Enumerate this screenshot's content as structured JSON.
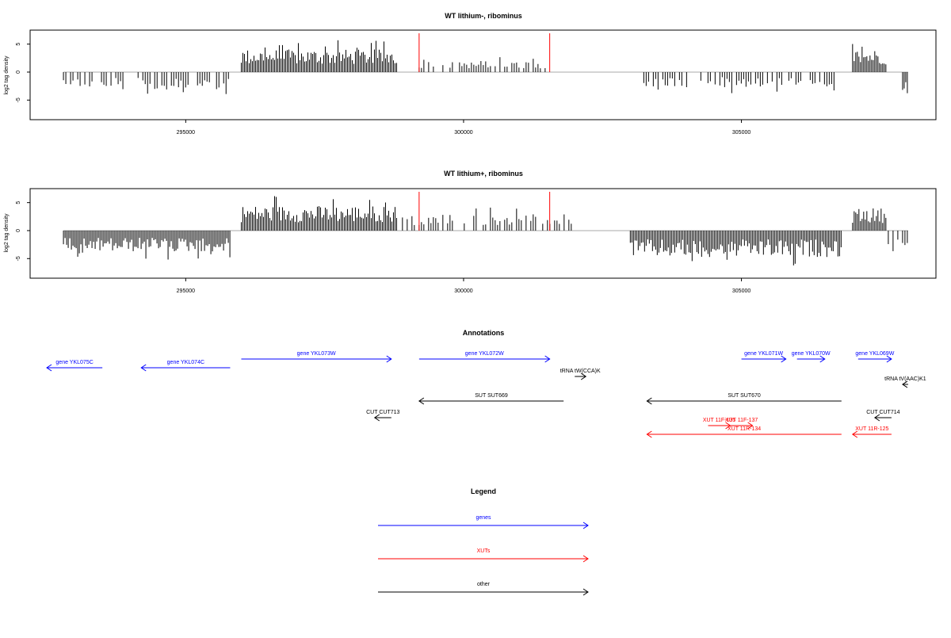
{
  "colors": {
    "genes": "#0000ff",
    "xuts": "#ff0000",
    "other": "#000000",
    "bars": "#000000",
    "markers": "#ff0000",
    "baseline": "#aaaaaa",
    "frame": "#000000"
  },
  "chart_data": [
    {
      "type": "bar",
      "title": "WT lithium-, ribominus",
      "ylabel": "log2 tag density",
      "xlim": [
        292200,
        308500
      ],
      "ylim": [
        -8.5,
        7.5
      ],
      "x_ticks": [
        295000,
        300000,
        305000
      ],
      "x_tick_labels": [
        "295000",
        "300000",
        "305000"
      ],
      "y_ticks": [
        -5,
        0,
        5
      ],
      "y_tick_labels": [
        "-5",
        "0",
        "5"
      ],
      "markers_x": [
        299200,
        301550
      ],
      "series": [
        {
          "segments": [
            {
              "start": 292800,
              "end": 293900,
              "mean": -2.0
            },
            {
              "start": 294100,
              "end": 295800,
              "mean": -2.3
            },
            {
              "start": 296000,
              "end": 298800,
              "mean": 3.0
            },
            {
              "start": 299200,
              "end": 301600,
              "mean": 1.5
            },
            {
              "start": 303200,
              "end": 306700,
              "mean": -2.0
            },
            {
              "start": 307000,
              "end": 307600,
              "mean": 3.0
            },
            {
              "start": 307900,
              "end": 308000,
              "mean": -3.0
            }
          ]
        }
      ]
    },
    {
      "type": "bar",
      "title": "WT lithium+, ribominus",
      "ylabel": "log2 tag density",
      "xlim": [
        292200,
        308500
      ],
      "ylim": [
        -8.5,
        7.5
      ],
      "x_ticks": [
        295000,
        300000,
        305000
      ],
      "x_tick_labels": [
        "295000",
        "300000",
        "305000"
      ],
      "y_ticks": [
        -5,
        0,
        5
      ],
      "y_tick_labels": [
        "-5",
        "0",
        "5"
      ],
      "markers_x": [
        299200,
        301550
      ],
      "series": [
        {
          "segments": [
            {
              "start": 292800,
              "end": 295800,
              "mean": -2.8
            },
            {
              "start": 296000,
              "end": 298800,
              "mean": 3.3
            },
            {
              "start": 298900,
              "end": 302000,
              "mean": 2.2
            },
            {
              "start": 303000,
              "end": 306800,
              "mean": -3.5
            },
            {
              "start": 307000,
              "end": 307600,
              "mean": 3.0
            },
            {
              "start": 307600,
              "end": 308000,
              "mean": -2.0
            }
          ]
        }
      ]
    }
  ],
  "annotations": {
    "title": "Annotations",
    "features": [
      {
        "label": "gene YKL075C",
        "start": 293500,
        "end": 292500,
        "row": 1,
        "kind": "genes"
      },
      {
        "label": "gene YKL074C",
        "start": 295800,
        "end": 294200,
        "row": 1,
        "kind": "genes"
      },
      {
        "label": "gene YKL073W",
        "start": 296000,
        "end": 298700,
        "row": 0,
        "kind": "genes"
      },
      {
        "label": "gene YKL072W",
        "start": 299200,
        "end": 301550,
        "row": 0,
        "kind": "genes"
      },
      {
        "label": "gene YKL071W",
        "start": 305000,
        "end": 305800,
        "row": 0,
        "kind": "genes"
      },
      {
        "label": "gene YKL070W",
        "start": 306000,
        "end": 306500,
        "row": 0,
        "kind": "genes"
      },
      {
        "label": "gene YKL069W",
        "start": 307100,
        "end": 307700,
        "row": 0,
        "kind": "genes"
      },
      {
        "label": "tRNA tW(CCA)K",
        "start": 302000,
        "end": 302200,
        "row": 2,
        "kind": "other"
      },
      {
        "label": "tRNA tV(AAC)K1",
        "start": 308000,
        "end": 307900,
        "row": 3,
        "kind": "other"
      },
      {
        "label": "SUT SUT669",
        "start": 301800,
        "end": 299200,
        "row": 4,
        "kind": "other"
      },
      {
        "label": "SUT SUT670",
        "start": 306800,
        "end": 303300,
        "row": 4,
        "kind": "other"
      },
      {
        "label": "CUT CUT713",
        "start": 298700,
        "end": 298400,
        "row": 5,
        "kind": "other"
      },
      {
        "label": "CUT CUT714",
        "start": 307700,
        "end": 307400,
        "row": 5,
        "kind": "other"
      },
      {
        "label": "XUT 11F-135",
        "start": 304400,
        "end": 304800,
        "row": 6,
        "kind": "xuts"
      },
      {
        "label": "XUT 11F-137",
        "start": 304800,
        "end": 305200,
        "row": 6,
        "kind": "xuts"
      },
      {
        "label": "XUT 11R-134",
        "start": 306800,
        "end": 303300,
        "row": 7,
        "kind": "xuts"
      },
      {
        "label": "XUT 11R-125",
        "start": 307700,
        "end": 307000,
        "row": 7,
        "kind": "xuts"
      }
    ]
  },
  "legend": {
    "title": "Legend",
    "items": [
      {
        "label": "genes",
        "kind": "genes"
      },
      {
        "label": "XUTs",
        "kind": "xuts"
      },
      {
        "label": "other",
        "kind": "other"
      }
    ]
  }
}
